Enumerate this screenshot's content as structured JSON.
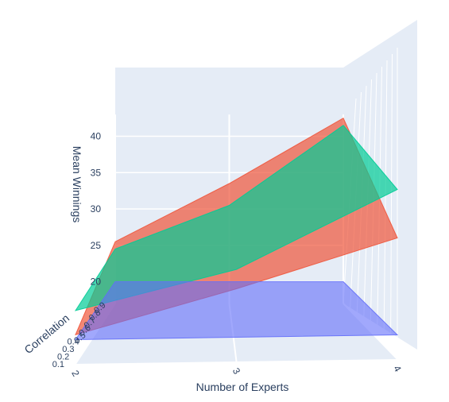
{
  "chart_data": {
    "type": "surface",
    "scene": "3d",
    "axes": {
      "x": {
        "label": "Number of Experts",
        "ticks": [
          "2",
          "3",
          "4"
        ],
        "range": [
          2,
          4
        ]
      },
      "y": {
        "label": "Correlation",
        "ticks": [
          "0.1",
          "0.2",
          "0.3",
          "0.4",
          "0.5",
          "0.6",
          "0.7",
          "0.8",
          "0.9"
        ],
        "range": [
          0.1,
          0.9
        ]
      },
      "z": {
        "label": "Mean Winnings",
        "ticks": [
          "20",
          "25",
          "30",
          "35",
          "40"
        ],
        "range": [
          17,
          43
        ]
      }
    },
    "grid": true,
    "legend": "none",
    "series": [
      {
        "color": "#ef553b",
        "opacity": 0.7,
        "values_by_experts": [
          {
            "x": 2,
            "z_low_corr": 20,
            "z_high_corr": 25.5
          },
          {
            "x": 3,
            "z_low_corr": 24.5,
            "z_high_corr": 33.5
          },
          {
            "x": 4,
            "z_low_corr": 29.5,
            "z_high_corr": 42.5
          }
        ]
      },
      {
        "color": "#00cc96",
        "opacity": 0.7,
        "values_by_experts": [
          {
            "x": 2,
            "z_low_corr": 22.5,
            "z_high_corr": 24.5
          },
          {
            "x": 3,
            "z_low_corr": 26.5,
            "z_high_corr": 30.5
          },
          {
            "x": 4,
            "z_low_corr": 34.5,
            "z_high_corr": 41.5
          }
        ]
      },
      {
        "color": "#636efa",
        "opacity": 0.6,
        "values_by_experts": [
          {
            "x": 2,
            "z_low_corr": 19.5,
            "z_high_corr": 20.0
          },
          {
            "x": 3,
            "z_low_corr": 19.5,
            "z_high_corr": 20.0
          },
          {
            "x": 4,
            "z_low_corr": 19.5,
            "z_high_corr": 20.0
          }
        ]
      }
    ]
  }
}
